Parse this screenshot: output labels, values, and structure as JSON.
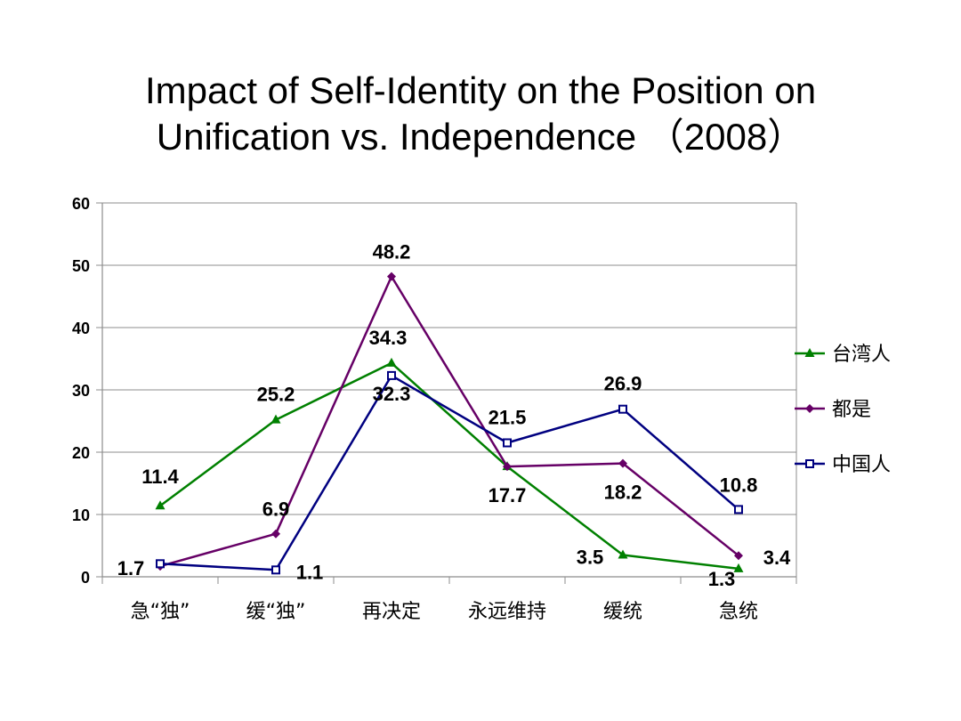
{
  "title": {
    "line1": "Impact of Self-Identity on the Position on",
    "line2": "Unification vs. Independence （2008）"
  },
  "chart_data": {
    "type": "line",
    "title": "Impact of Self-Identity on the Position on Unification vs. Independence （2008）",
    "categories": [
      "急“独”",
      "缓“独”",
      "再决定",
      "永远维持",
      "缓统",
      "急统"
    ],
    "ylim": [
      0,
      60
    ],
    "yticks": [
      0,
      10,
      20,
      30,
      40,
      50,
      60
    ],
    "grid": true,
    "legend": "right",
    "series": [
      {
        "name": "台湾人",
        "values": [
          11.4,
          25.2,
          34.3,
          17.7,
          3.5,
          1.3
        ],
        "color": "#008000",
        "marker": "triangle"
      },
      {
        "name": "都是",
        "values": [
          1.7,
          6.9,
          48.2,
          17.7,
          18.2,
          3.4
        ],
        "color": "#660066",
        "marker": "diamond"
      },
      {
        "name": "中国人",
        "values": [
          2.1,
          1.1,
          32.3,
          21.5,
          26.9,
          10.8
        ],
        "color": "#000080",
        "marker": "square"
      }
    ],
    "data_labels": [
      {
        "series": 0,
        "index": 0,
        "text": "11.4"
      },
      {
        "series": 0,
        "index": 1,
        "text": "25.2"
      },
      {
        "series": 0,
        "index": 2,
        "text": "34.3"
      },
      {
        "series": 0,
        "index": 4,
        "text": "3.5"
      },
      {
        "series": 0,
        "index": 5,
        "text": "1.3"
      },
      {
        "series": 1,
        "index": 0,
        "text": "1.7"
      },
      {
        "series": 1,
        "index": 1,
        "text": "6.9"
      },
      {
        "series": 1,
        "index": 2,
        "text": "48.2"
      },
      {
        "series": 1,
        "index": 3,
        "text": "17.7"
      },
      {
        "series": 1,
        "index": 4,
        "text": "18.2"
      },
      {
        "series": 1,
        "index": 5,
        "text": "3.4"
      },
      {
        "series": 2,
        "index": 1,
        "text": "1.1"
      },
      {
        "series": 2,
        "index": 2,
        "text": "32.3"
      },
      {
        "series": 2,
        "index": 3,
        "text": "21.5"
      },
      {
        "series": 2,
        "index": 4,
        "text": "26.9"
      },
      {
        "series": 2,
        "index": 5,
        "text": "10.8"
      }
    ]
  }
}
